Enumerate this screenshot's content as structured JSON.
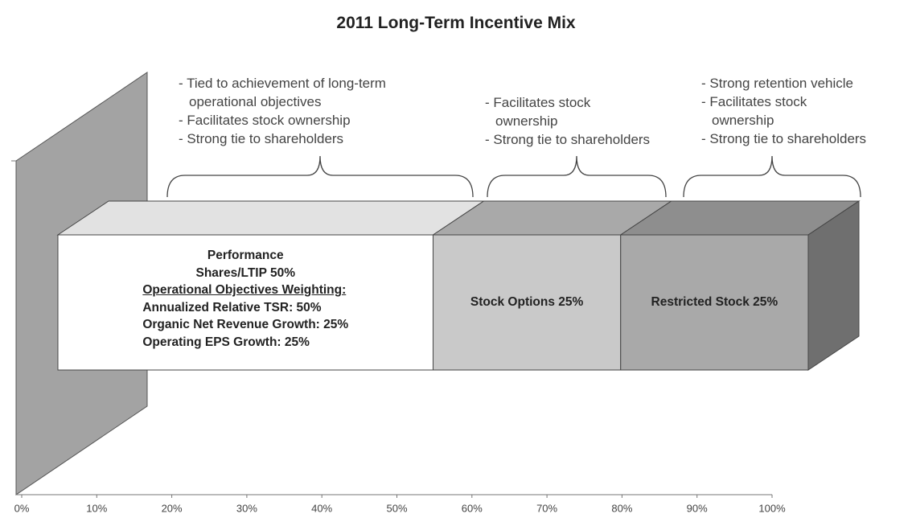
{
  "chart_data": {
    "type": "bar3d",
    "title": "2011 Long-Term Incentive Mix",
    "series": [
      {
        "name": "Performance Shares/LTIP 50%",
        "values": [
          50
        ],
        "color": "#ffffff",
        "top_color": "#e2e2e2"
      },
      {
        "name": "Stock Options 25%",
        "values": [
          25
        ],
        "color": "#c9c9c9",
        "top_color": "#a9a9a9"
      },
      {
        "name": "Restricted Stock 25%",
        "values": [
          25
        ],
        "color": "#a9a9a9",
        "top_color": "#8e8e8e"
      }
    ],
    "side_color": "#6f6f6f",
    "wall_color": "#a3a3a3",
    "weighting_title": "Operational Objectives Weighting:",
    "weightings": [
      "Annualized Relative TSR: 50%",
      "Organic Net Revenue Growth: 25%",
      "Operating EPS Growth: 25%"
    ],
    "annotations": [
      {
        "items": [
          [
            "- Tied to achievement of long-term",
            "operational objectives"
          ],
          [
            "- Facilitates stock ownership"
          ],
          [
            "- Strong tie to shareholders"
          ]
        ]
      },
      {
        "items": [
          [
            "- Facilitates stock",
            "ownership"
          ],
          [
            "- Strong tie to shareholders"
          ]
        ]
      },
      {
        "items": [
          [
            "- Strong retention vehicle"
          ],
          [
            "- Facilitates stock",
            "ownership"
          ],
          [
            "- Strong tie to shareholders"
          ]
        ]
      }
    ],
    "xlim": [
      0,
      100
    ],
    "xticks": [
      {
        "value": 0,
        "label": "0%"
      },
      {
        "value": 10,
        "label": "10%"
      },
      {
        "value": 20,
        "label": "20%"
      },
      {
        "value": 30,
        "label": "30%"
      },
      {
        "value": 40,
        "label": "40%"
      },
      {
        "value": 50,
        "label": "50%"
      },
      {
        "value": 60,
        "label": "60%"
      },
      {
        "value": 70,
        "label": "70%"
      },
      {
        "value": 80,
        "label": "80%"
      },
      {
        "value": 90,
        "label": "90%"
      },
      {
        "value": 100,
        "label": "100%"
      }
    ]
  }
}
